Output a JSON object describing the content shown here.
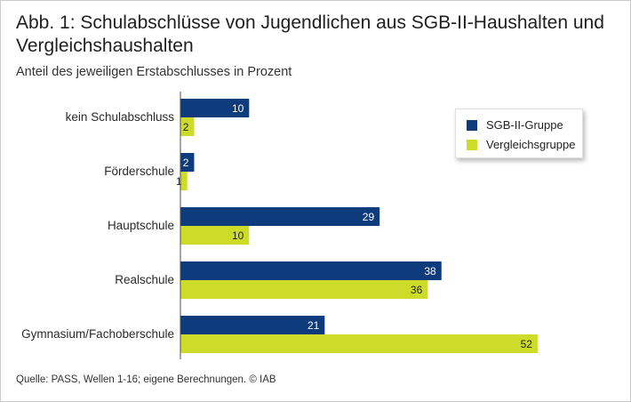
{
  "title": "Abb. 1: Schulabschlüsse von Jugendlichen aus SGB-II-Haushalten und Vergleichshaushalten",
  "subtitle": "Anteil des jeweiligen Erstabschlusses in Prozent",
  "source": "Quelle: PASS, Wellen 1-16; eigene Berechnungen.  © IAB",
  "colors": {
    "sgb": "#0d3b7c",
    "vergleich": "#cddc29"
  },
  "chart_data": {
    "type": "bar",
    "orientation": "horizontal",
    "categories": [
      "kein Schulabschluss",
      "Förderschule",
      "Hauptschule",
      "Realschule",
      "Gymnasium/Fachoberschule"
    ],
    "series": [
      {
        "name": "SGB-II-Gruppe",
        "values": [
          10,
          2,
          29,
          38,
          21
        ]
      },
      {
        "name": "Vergleichsgruppe",
        "values": [
          2,
          1,
          10,
          36,
          52
        ]
      }
    ],
    "xlim": [
      0,
      52
    ],
    "grid": false,
    "legend_position": "top-right"
  }
}
